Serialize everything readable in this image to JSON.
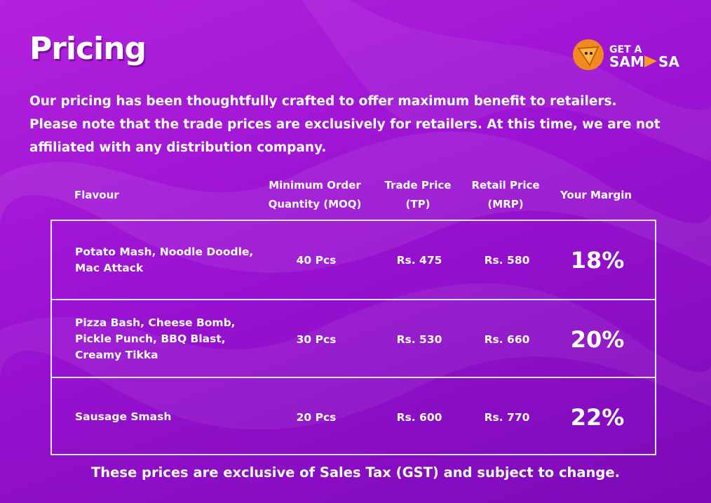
{
  "header": {
    "title": "Pricing",
    "logo": {
      "top": "GET A",
      "left": "SAM",
      "right": "SA"
    }
  },
  "intro": "Our pricing has been thoughtfully crafted to offer maximum benefit to retailers. Please note that the trade prices are exclusively for retailers. At this time, we are not affiliated with any distribution company.",
  "table": {
    "headers": [
      [
        "Flavour"
      ],
      [
        "Minimum Order",
        "Quantity (MOQ)"
      ],
      [
        "Trade Price",
        "(TP)"
      ],
      [
        "Retail Price",
        "(MRP)"
      ],
      [
        "Your Margin"
      ]
    ],
    "rows": [
      {
        "flavour": [
          "Potato Mash, Noodle Doodle,",
          "Mac Attack"
        ],
        "moq": "40 Pcs",
        "tp": "Rs. 475",
        "mrp": "Rs. 580",
        "margin": "18%"
      },
      {
        "flavour": [
          "Pizza Bash, Cheese Bomb,",
          "Pickle Punch, BBQ Blast,",
          "Creamy Tikka"
        ],
        "moq": "30 Pcs",
        "tp": "Rs. 530",
        "mrp": "Rs. 660",
        "margin": "20%"
      },
      {
        "flavour": [
          "Sausage Smash"
        ],
        "moq": "20 Pcs",
        "tp": "Rs. 600",
        "mrp": "Rs. 770",
        "margin": "22%"
      }
    ]
  },
  "footer": "These prices are exclusive of Sales Tax (GST) and subject to change."
}
